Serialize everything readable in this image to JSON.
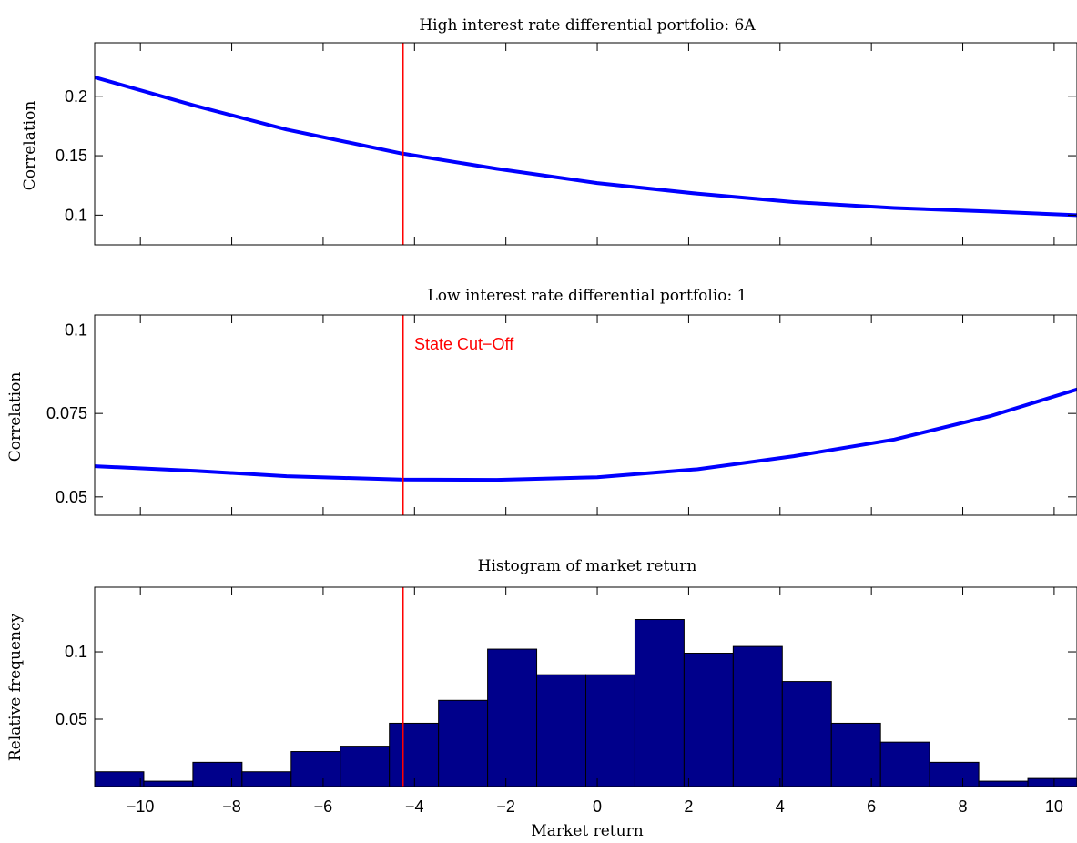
{
  "colors": {
    "line": "#0000ff",
    "bar": "#00008b",
    "cutoff": "#ff0000",
    "axis": "#000000"
  },
  "chart_data": [
    {
      "type": "line",
      "title": "High interest rate differential portfolio: 6A",
      "xlabel": "",
      "ylabel": "Correlation",
      "xlim": [
        -11,
        10.5
      ],
      "ylim": [
        0.075,
        0.245
      ],
      "xticks": [
        -10,
        -8,
        -6,
        -4,
        -2,
        0,
        2,
        4,
        6,
        8,
        10
      ],
      "yticks": [
        0.1,
        0.15,
        0.2
      ],
      "ytick_labels": [
        "0.1",
        "0.15",
        "0.2"
      ],
      "x": [
        -11,
        -8.8,
        -6.8,
        -4.3,
        -2.2,
        0,
        2.2,
        4.3,
        6.5,
        8.6,
        10.5
      ],
      "series": [
        {
          "values": [
            0.216,
            0.192,
            0.172,
            0.152,
            0.139,
            0.127,
            0.118,
            0.111,
            0.106,
            0.103,
            0.1
          ]
        }
      ],
      "cutoff_x": -4.25,
      "grid": false
    },
    {
      "type": "line",
      "title": "Low interest rate differential portfolio: 1",
      "xlabel": "",
      "ylabel": "Correlation",
      "xlim": [
        -11,
        10.5
      ],
      "ylim": [
        0.0445,
        0.1045
      ],
      "xticks": [
        -10,
        -8,
        -6,
        -4,
        -2,
        0,
        2,
        4,
        6,
        8,
        10
      ],
      "yticks": [
        0.05,
        0.075,
        0.1
      ],
      "ytick_labels": [
        "0.05",
        "0.075",
        "0.1"
      ],
      "x": [
        -11,
        -8.8,
        -6.8,
        -4.3,
        -2.2,
        0,
        2.2,
        4.3,
        6.5,
        8.6,
        10.5
      ],
      "series": [
        {
          "values": [
            0.0592,
            0.0578,
            0.0562,
            0.0552,
            0.0551,
            0.0559,
            0.0583,
            0.0622,
            0.0672,
            0.0742,
            0.0822
          ]
        }
      ],
      "cutoff_x": -4.25,
      "annotation": "State Cut−Off",
      "grid": false
    },
    {
      "type": "bar",
      "title": "Histogram of market return",
      "xlabel": "Market return",
      "ylabel": "Relative frequency",
      "xlim": [
        -11,
        10.5
      ],
      "ylim": [
        0,
        0.148
      ],
      "xticks": [
        -10,
        -8,
        -6,
        -4,
        -2,
        0,
        2,
        4,
        6,
        8,
        10
      ],
      "xtick_labels": [
        "−10",
        "−8",
        "−6",
        "−4",
        "−2",
        "0",
        "2",
        "4",
        "6",
        "8",
        "10"
      ],
      "yticks": [
        0.05,
        0.1
      ],
      "ytick_labels": [
        "0.05",
        "0.1"
      ],
      "bin_start": -11,
      "bin_width": 1.075,
      "values": [
        0.011,
        0.004,
        0.018,
        0.011,
        0.026,
        0.03,
        0.047,
        0.064,
        0.102,
        0.083,
        0.083,
        0.124,
        0.099,
        0.104,
        0.078,
        0.047,
        0.033,
        0.018,
        0.004,
        0.006
      ],
      "cutoff_x": -4.25,
      "grid": false
    }
  ]
}
